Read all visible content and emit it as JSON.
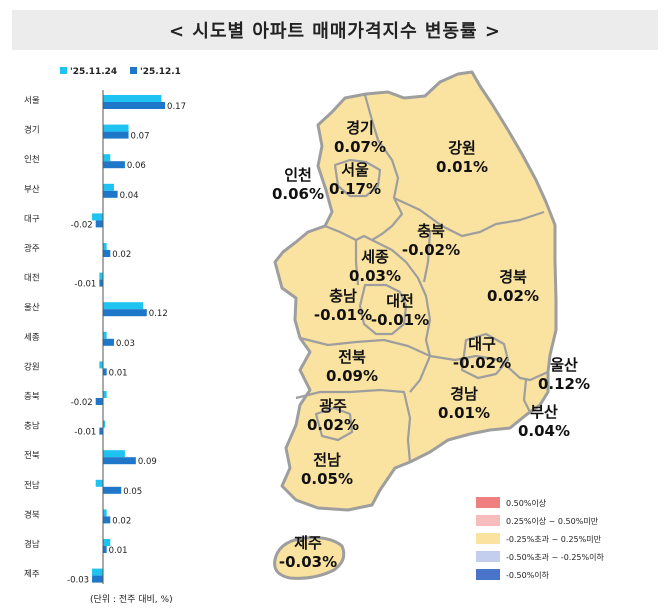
{
  "title": "< 시도별 아파트 매매가격지수 변동률 >",
  "chart_data": {
    "type": "bar",
    "orientation": "horizontal",
    "categories": [
      "서울",
      "경기",
      "인천",
      "부산",
      "대구",
      "광주",
      "대전",
      "울산",
      "세종",
      "강원",
      "충북",
      "충남",
      "전북",
      "전남",
      "경북",
      "경남",
      "제주"
    ],
    "series": [
      {
        "name": "'25.11.24",
        "color": "#1ec3f2",
        "values": [
          0.16,
          0.07,
          0.02,
          0.03,
          -0.03,
          0.01,
          -0.01,
          0.11,
          0.01,
          -0.01,
          0.01,
          0.0,
          0.06,
          -0.02,
          0.01,
          0.02,
          -0.03
        ]
      },
      {
        "name": "'25.12.1",
        "color": "#1f77c9",
        "values": [
          0.17,
          0.07,
          0.06,
          0.04,
          -0.02,
          0.02,
          -0.01,
          0.12,
          0.03,
          0.01,
          -0.02,
          -0.01,
          0.09,
          0.05,
          0.02,
          0.01,
          -0.03
        ]
      }
    ],
    "value_labels": [
      "0.17",
      "0.07",
      "0.06",
      "0.04",
      "-0.02",
      "0.02",
      "-0.01",
      "0.12",
      "0.03",
      "0.01",
      "-0.02",
      "-0.01",
      "0.09",
      "0.05",
      "0.02",
      "0.01",
      "-0.03"
    ],
    "unit_note": "(단위 : 전주 대비, %)",
    "legend_position": "top"
  },
  "map": {
    "regions": [
      {
        "name": "경기",
        "value": "0.07%"
      },
      {
        "name": "강원",
        "value": "0.01%"
      },
      {
        "name": "인천",
        "value": "0.06%"
      },
      {
        "name": "서울",
        "value": "0.17%"
      },
      {
        "name": "충북",
        "value": "-0.02%"
      },
      {
        "name": "세종",
        "value": "0.03%"
      },
      {
        "name": "경북",
        "value": "0.02%"
      },
      {
        "name": "충남",
        "value": "-0.01%"
      },
      {
        "name": "대전",
        "value": "-0.01%"
      },
      {
        "name": "대구",
        "value": "-0.02%"
      },
      {
        "name": "울산",
        "value": "0.12%"
      },
      {
        "name": "전북",
        "value": "0.09%"
      },
      {
        "name": "경남",
        "value": "0.01%"
      },
      {
        "name": "부산",
        "value": "0.04%"
      },
      {
        "name": "광주",
        "value": "0.02%"
      },
      {
        "name": "전남",
        "value": "0.05%"
      },
      {
        "name": "제주",
        "value": "-0.03%"
      }
    ],
    "legend": [
      {
        "label": "0.50%이상",
        "color": "#f08080"
      },
      {
        "label": "0.25%이상 ~ 0.50%미만",
        "color": "#f7bcbc"
      },
      {
        "label": "-0.25%초과 ~ 0.25%미만",
        "color": "#fae3a0"
      },
      {
        "label": "-0.50%초과 ~ -0.25%이하",
        "color": "#c3cdee"
      },
      {
        "label": "-0.50%이하",
        "color": "#4a74c9"
      }
    ],
    "land_color": "#fae3a0",
    "border_color": "#9e9e9e"
  }
}
